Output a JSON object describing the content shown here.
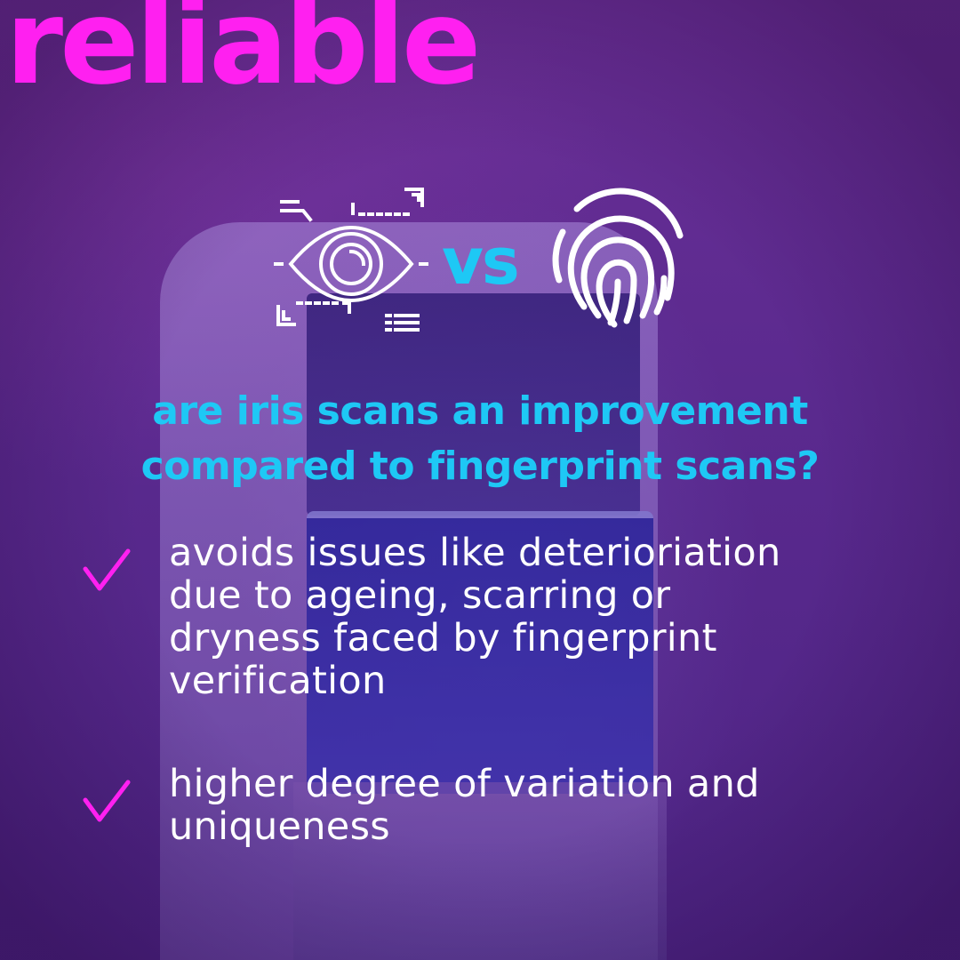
{
  "headline": "reliable",
  "comparison": {
    "left_icon": "eye-scan-icon",
    "separator": "vs",
    "right_icon": "fingerprint-icon"
  },
  "question": {
    "line1": "are iris scans an improvement",
    "line2": "compared to fingerprint scans?"
  },
  "benefits": [
    {
      "icon": "check-icon",
      "lines": [
        "avoids issues like deterioriation",
        "due to ageing, scarring or",
        "dryness faced by fingerprint",
        "verification"
      ]
    },
    {
      "icon": "check-icon",
      "lines": [
        "higher degree of variation and",
        "uniqueness"
      ]
    }
  ],
  "colors": {
    "headline": "#ff20f0",
    "accent": "#1ec8f5",
    "check": "#ff20f0",
    "body_text": "#ffffff",
    "background": "#5a2a8c"
  }
}
